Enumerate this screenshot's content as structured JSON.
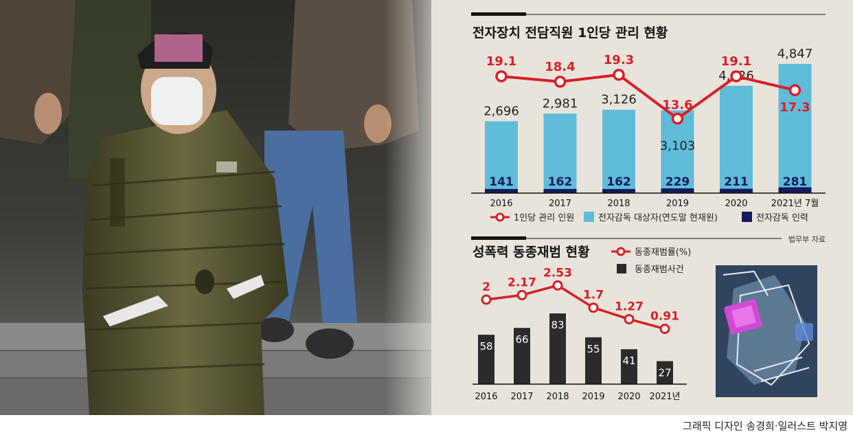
{
  "colors": {
    "background": "#e8e4dc",
    "accent_red": "#d71f26",
    "bar_light_blue": "#5fbcd8",
    "bar_navy": "#141a5c",
    "bar_dark": "#2b2b2b"
  },
  "chart_data": [
    {
      "type": "bar",
      "title": "전자장치 전담직원 1인당 관리 현황",
      "categories": [
        "2016",
        "2017",
        "2018",
        "2019",
        "2020",
        "2021년 7월"
      ],
      "series": [
        {
          "name": "1인당 관리 인원",
          "kind": "line",
          "values": [
            19.1,
            18.4,
            19.3,
            13.6,
            19.1,
            17.3
          ],
          "labels": [
            "19.1",
            "18.4",
            "19.3",
            "13.6",
            "19.1",
            "17.3"
          ]
        },
        {
          "name": "전자감독 대상자(연도말 현재원)",
          "kind": "bar",
          "values": [
            2696,
            2981,
            3126,
            3103,
            4026,
            4847
          ],
          "labels": [
            "2,696",
            "2,981",
            "3,126",
            "3,103",
            "4,026",
            "4,847"
          ]
        },
        {
          "name": "전자감독 인력",
          "kind": "bar",
          "values": [
            141,
            162,
            162,
            229,
            211,
            281
          ],
          "labels": [
            "141",
            "162",
            "162",
            "229",
            "211",
            "281"
          ]
        }
      ],
      "source": "법무부 자료"
    },
    {
      "type": "bar",
      "title": "성폭력 동종재범 현황",
      "categories": [
        "2016",
        "2017",
        "2018",
        "2019",
        "2020",
        "2021년"
      ],
      "series": [
        {
          "name": "동종재범률(%)",
          "kind": "line",
          "values": [
            2,
            2.17,
            2.53,
            1.7,
            1.27,
            0.91
          ],
          "labels": [
            "2",
            "2.17",
            "2.53",
            "1.7",
            "1.27",
            "0.91"
          ]
        },
        {
          "name": "동종재범사건",
          "kind": "bar",
          "values": [
            58,
            66,
            83,
            55,
            41,
            27
          ],
          "labels": [
            "58",
            "66",
            "83",
            "55",
            "41",
            "27"
          ]
        }
      ]
    }
  ],
  "credit": "그래픽 디자인 송경희·일러스트 박지영"
}
